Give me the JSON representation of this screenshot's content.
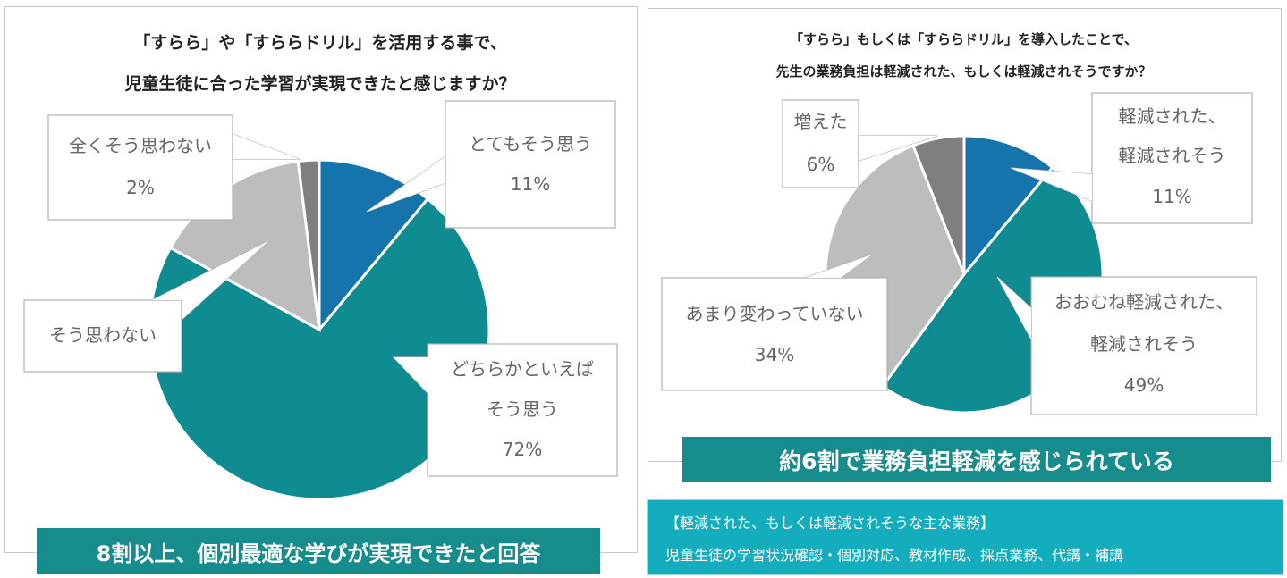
{
  "chart_data": [
    {
      "type": "pie",
      "title_line1": "「すらら」や「すららドリル」を活用する事で、",
      "title_line2": "児童生徒に合った学習が実現できたと感じますか？",
      "slices": [
        {
          "label_lines": [
            "とてもそう思う"
          ],
          "value": 11,
          "value_label": "11%",
          "color": "#1674ac"
        },
        {
          "label_lines": [
            "どちらかといえば",
            "そう思う"
          ],
          "value": 72,
          "value_label": "72%",
          "color": "#0f8c91"
        },
        {
          "label_lines": [
            "そう思わない"
          ],
          "value": 15,
          "value_label": "",
          "color": "#bdbdbd"
        },
        {
          "label_lines": [
            "全くそう思わない"
          ],
          "value": 2,
          "value_label": "2%",
          "color": "#7f7f7f"
        }
      ],
      "banner": "8割以上、個別最適な学びが実現できたと回答"
    },
    {
      "type": "pie",
      "title_line1": "「すらら」もしくは「すららドリル」を導入したことで、",
      "title_line2": "先生の業務負担は軽減された、もしくは軽減されそうですか？",
      "slices": [
        {
          "label_lines": [
            "軽減された、",
            "軽減されそう"
          ],
          "value": 11,
          "value_label": "11%",
          "color": "#1674ac"
        },
        {
          "label_lines": [
            "おおむね軽減された、",
            "軽減されそう"
          ],
          "value": 49,
          "value_label": "49%",
          "color": "#0f8c91"
        },
        {
          "label_lines": [
            "あまり変わっていない"
          ],
          "value": 34,
          "value_label": "34%",
          "color": "#bdbdbd"
        },
        {
          "label_lines": [
            "増えた"
          ],
          "value": 6,
          "value_label": "6%",
          "color": "#7f7f7f"
        }
      ],
      "banner": "約6割で業務負担軽減を感じられている"
    }
  ],
  "note": {
    "heading": "【軽減された、もしくは軽減されそうな主な業務】",
    "body": "児童生徒の学習状況確認・個別対応、教材作成、採点業務、代講・補講"
  }
}
